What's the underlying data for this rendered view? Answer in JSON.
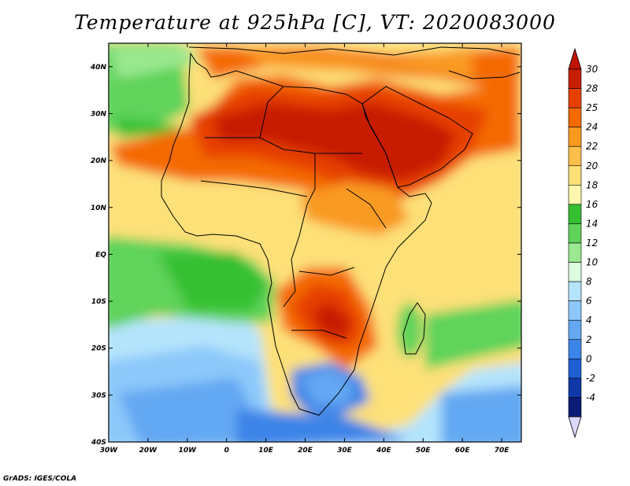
{
  "title": "Temperature at 925hPa [C], VT: 2020083000",
  "credit": "GrADS: IGES/COLA",
  "map": {
    "lon_ticks": [
      "30W",
      "20W",
      "10W",
      "0",
      "10E",
      "20E",
      "30E",
      "40E",
      "50E",
      "60E",
      "70E"
    ],
    "lat_ticks": [
      "40N",
      "30N",
      "20N",
      "10N",
      "EQ",
      "10S",
      "20S",
      "30S",
      "40S"
    ],
    "lon_range": [
      -30,
      75
    ],
    "lat_range": [
      -40,
      45
    ]
  },
  "colorbar": {
    "labels": [
      "30",
      "28",
      "25",
      "24",
      "22",
      "20",
      "18",
      "16",
      "14",
      "12",
      "10",
      "8",
      "6",
      "4",
      "2",
      "0",
      "-2",
      "-4"
    ],
    "colors": [
      "#c81e00",
      "#e64000",
      "#f46a00",
      "#f99a20",
      "#fbbf4a",
      "#fde078",
      "#fdf7ad",
      "#34c030",
      "#5fd35a",
      "#9ae890",
      "#dcfde0",
      "#b4e4fc",
      "#8cc8fa",
      "#64a8f2",
      "#3c84e8",
      "#1e5fd4",
      "#1038a8",
      "#0a1c78"
    ],
    "top_arrow_color": "#c01400",
    "bottom_arrow_color": "#dcd8fc"
  }
}
